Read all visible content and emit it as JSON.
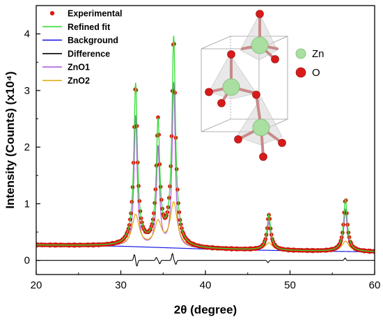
{
  "chart_data": {
    "type": "line",
    "xlabel": "2θ (degree)",
    "ylabel": "Intensity (Counts) (x10⁴)",
    "xlim": [
      20,
      60
    ],
    "ylim": [
      -0.25,
      4.5
    ],
    "x_ticks": [
      20,
      30,
      40,
      50,
      60
    ],
    "y_ticks": [
      0,
      1,
      2,
      3,
      4
    ],
    "grid": false,
    "legend_position": "top-left",
    "legend": [
      "Experimental",
      "Refined fit",
      "Background",
      "Difference",
      "ZnO1",
      "ZnO2"
    ],
    "colors": {
      "experimental": "#e8140c",
      "refined_fit": "#33dd33",
      "background": "#1a1ae6",
      "difference": "#000000",
      "zno1": "#b060e0",
      "zno2": "#e0a800"
    },
    "background": {
      "x": [
        20,
        30,
        40,
        50,
        60
      ],
      "y": [
        0.27,
        0.25,
        0.2,
        0.17,
        0.15
      ]
    },
    "peaks": [
      {
        "center": 31.75,
        "zno1_height": 2.3,
        "zno2_height": 0.55
      },
      {
        "center": 34.4,
        "zno1_height": 1.75,
        "zno2_height": 0.42
      },
      {
        "center": 36.25,
        "zno1_height": 2.9,
        "zno2_height": 0.78
      },
      {
        "center": 47.5,
        "zno1_height": 0.5,
        "zno2_height": 0.13
      },
      {
        "center": 56.55,
        "zno1_height": 0.75,
        "zno2_height": 0.18
      }
    ],
    "difference_features": [
      {
        "x": 31.6,
        "y": 0.1
      },
      {
        "x": 31.9,
        "y": -0.1
      },
      {
        "x": 34.2,
        "y": 0.05
      },
      {
        "x": 34.6,
        "y": -0.06
      },
      {
        "x": 36.1,
        "y": 0.12
      },
      {
        "x": 36.5,
        "y": -0.07
      },
      {
        "x": 47.4,
        "y": -0.04
      },
      {
        "x": 56.5,
        "y": 0.04
      }
    ]
  },
  "inset": {
    "legend": [
      {
        "label": "Zn",
        "color": "#a9dfa0"
      },
      {
        "label": "O",
        "color": "#d91a1a"
      }
    ]
  }
}
